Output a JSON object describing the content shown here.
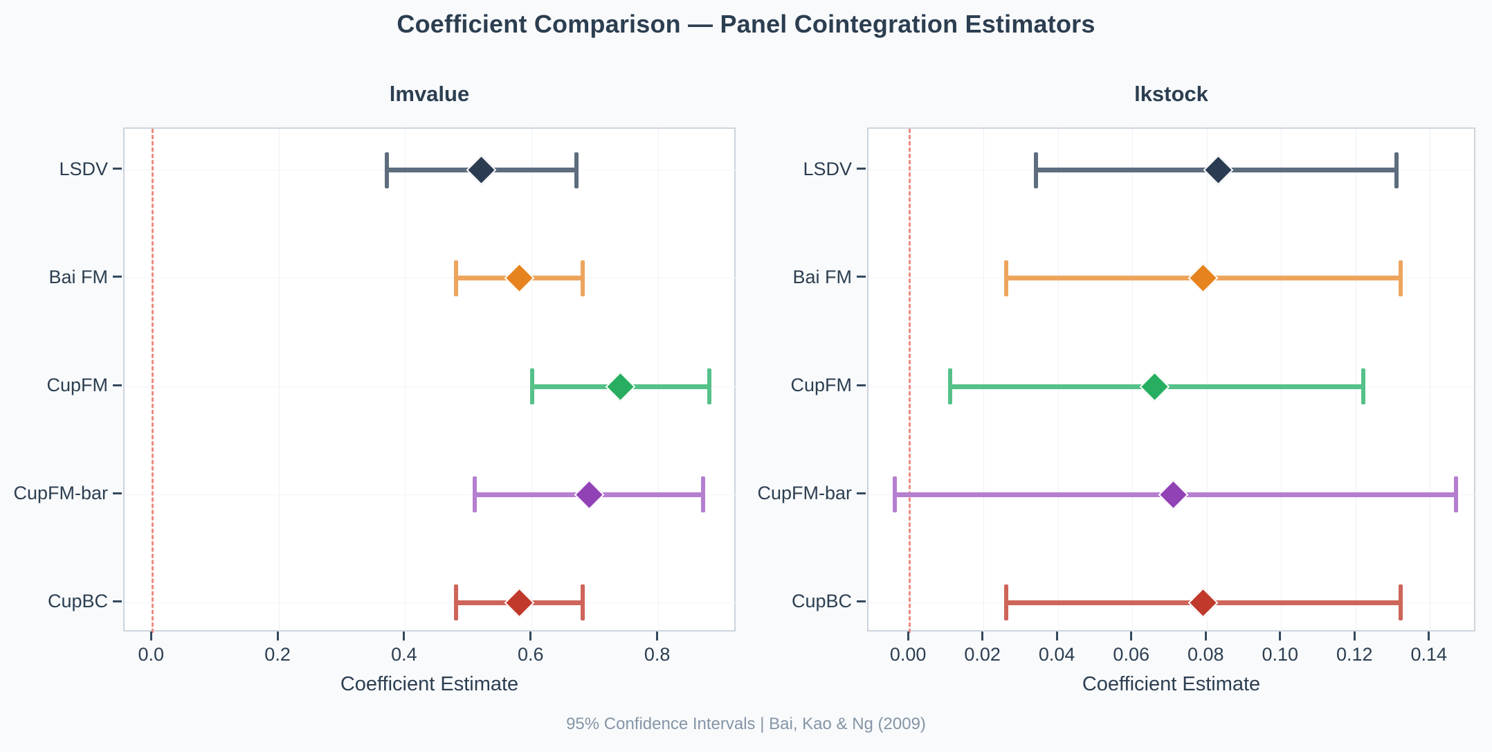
{
  "page": {
    "title": "Coefficient Comparison — Panel Cointegration Estimators",
    "footer": "95% Confidence Intervals | Bai, Kao & Ng (2009)"
  },
  "colors": {
    "background": "#f8fafc",
    "panel_background": "#ffffff",
    "panel_border": "#ccd4dc",
    "title_text": "#2c3e50",
    "tick_text": "#2c3e50",
    "footer_text": "#8595a5",
    "zero_line": "#ec8b80",
    "vertical_grid": "#edf0f4",
    "horizontal_grid": "#f1f4f7"
  },
  "estimators": [
    {
      "name": "LSDV",
      "marker_color": "#2b3c52",
      "line_color": "#5d6d7e"
    },
    {
      "name": "Bai FM",
      "marker_color": "#e6831e",
      "line_color": "#eda55e"
    },
    {
      "name": "CupFM",
      "marker_color": "#27ae60",
      "line_color": "#55c189"
    },
    {
      "name": "CupFM-bar",
      "marker_color": "#9142b5",
      "line_color": "#b57fd0"
    },
    {
      "name": "CupBC",
      "marker_color": "#c0392b",
      "line_color": "#cd655a"
    }
  ],
  "chart_data": [
    {
      "type": "scatter",
      "subtype": "coefficient-plot-with-ci",
      "title": "lmvalue",
      "xlabel": "Coefficient Estimate",
      "categories": [
        "LSDV",
        "Bai FM",
        "CupFM",
        "CupFM-bar",
        "CupBC"
      ],
      "estimates": [
        0.52,
        0.58,
        0.74,
        0.69,
        0.58
      ],
      "ci_low": [
        0.37,
        0.48,
        0.6,
        0.51,
        0.48
      ],
      "ci_high": [
        0.67,
        0.68,
        0.88,
        0.87,
        0.68
      ],
      "xlim": [
        -0.044,
        0.924
      ],
      "xticks": [
        0.0,
        0.2,
        0.4,
        0.6,
        0.8
      ],
      "xtick_labels": [
        "0.0",
        "0.2",
        "0.4",
        "0.6",
        "0.8"
      ],
      "zero_reference_line": 0.0,
      "grid": true,
      "legend": "none"
    },
    {
      "type": "scatter",
      "subtype": "coefficient-plot-with-ci",
      "title": "lkstock",
      "xlabel": "Coefficient Estimate",
      "categories": [
        "LSDV",
        "Bai FM",
        "CupFM",
        "CupFM-bar",
        "CupBC"
      ],
      "estimates": [
        0.083,
        0.079,
        0.066,
        0.071,
        0.079
      ],
      "ci_low": [
        0.034,
        0.026,
        0.011,
        -0.004,
        0.026
      ],
      "ci_high": [
        0.131,
        0.132,
        0.122,
        0.147,
        0.132
      ],
      "xlim": [
        -0.011,
        0.1525
      ],
      "xticks": [
        0.0,
        0.02,
        0.04,
        0.06,
        0.08,
        0.1,
        0.12,
        0.14
      ],
      "xtick_labels": [
        "0.00",
        "0.02",
        "0.04",
        "0.06",
        "0.08",
        "0.10",
        "0.12",
        "0.14"
      ],
      "zero_reference_line": 0.0,
      "grid": true,
      "legend": "none"
    }
  ]
}
